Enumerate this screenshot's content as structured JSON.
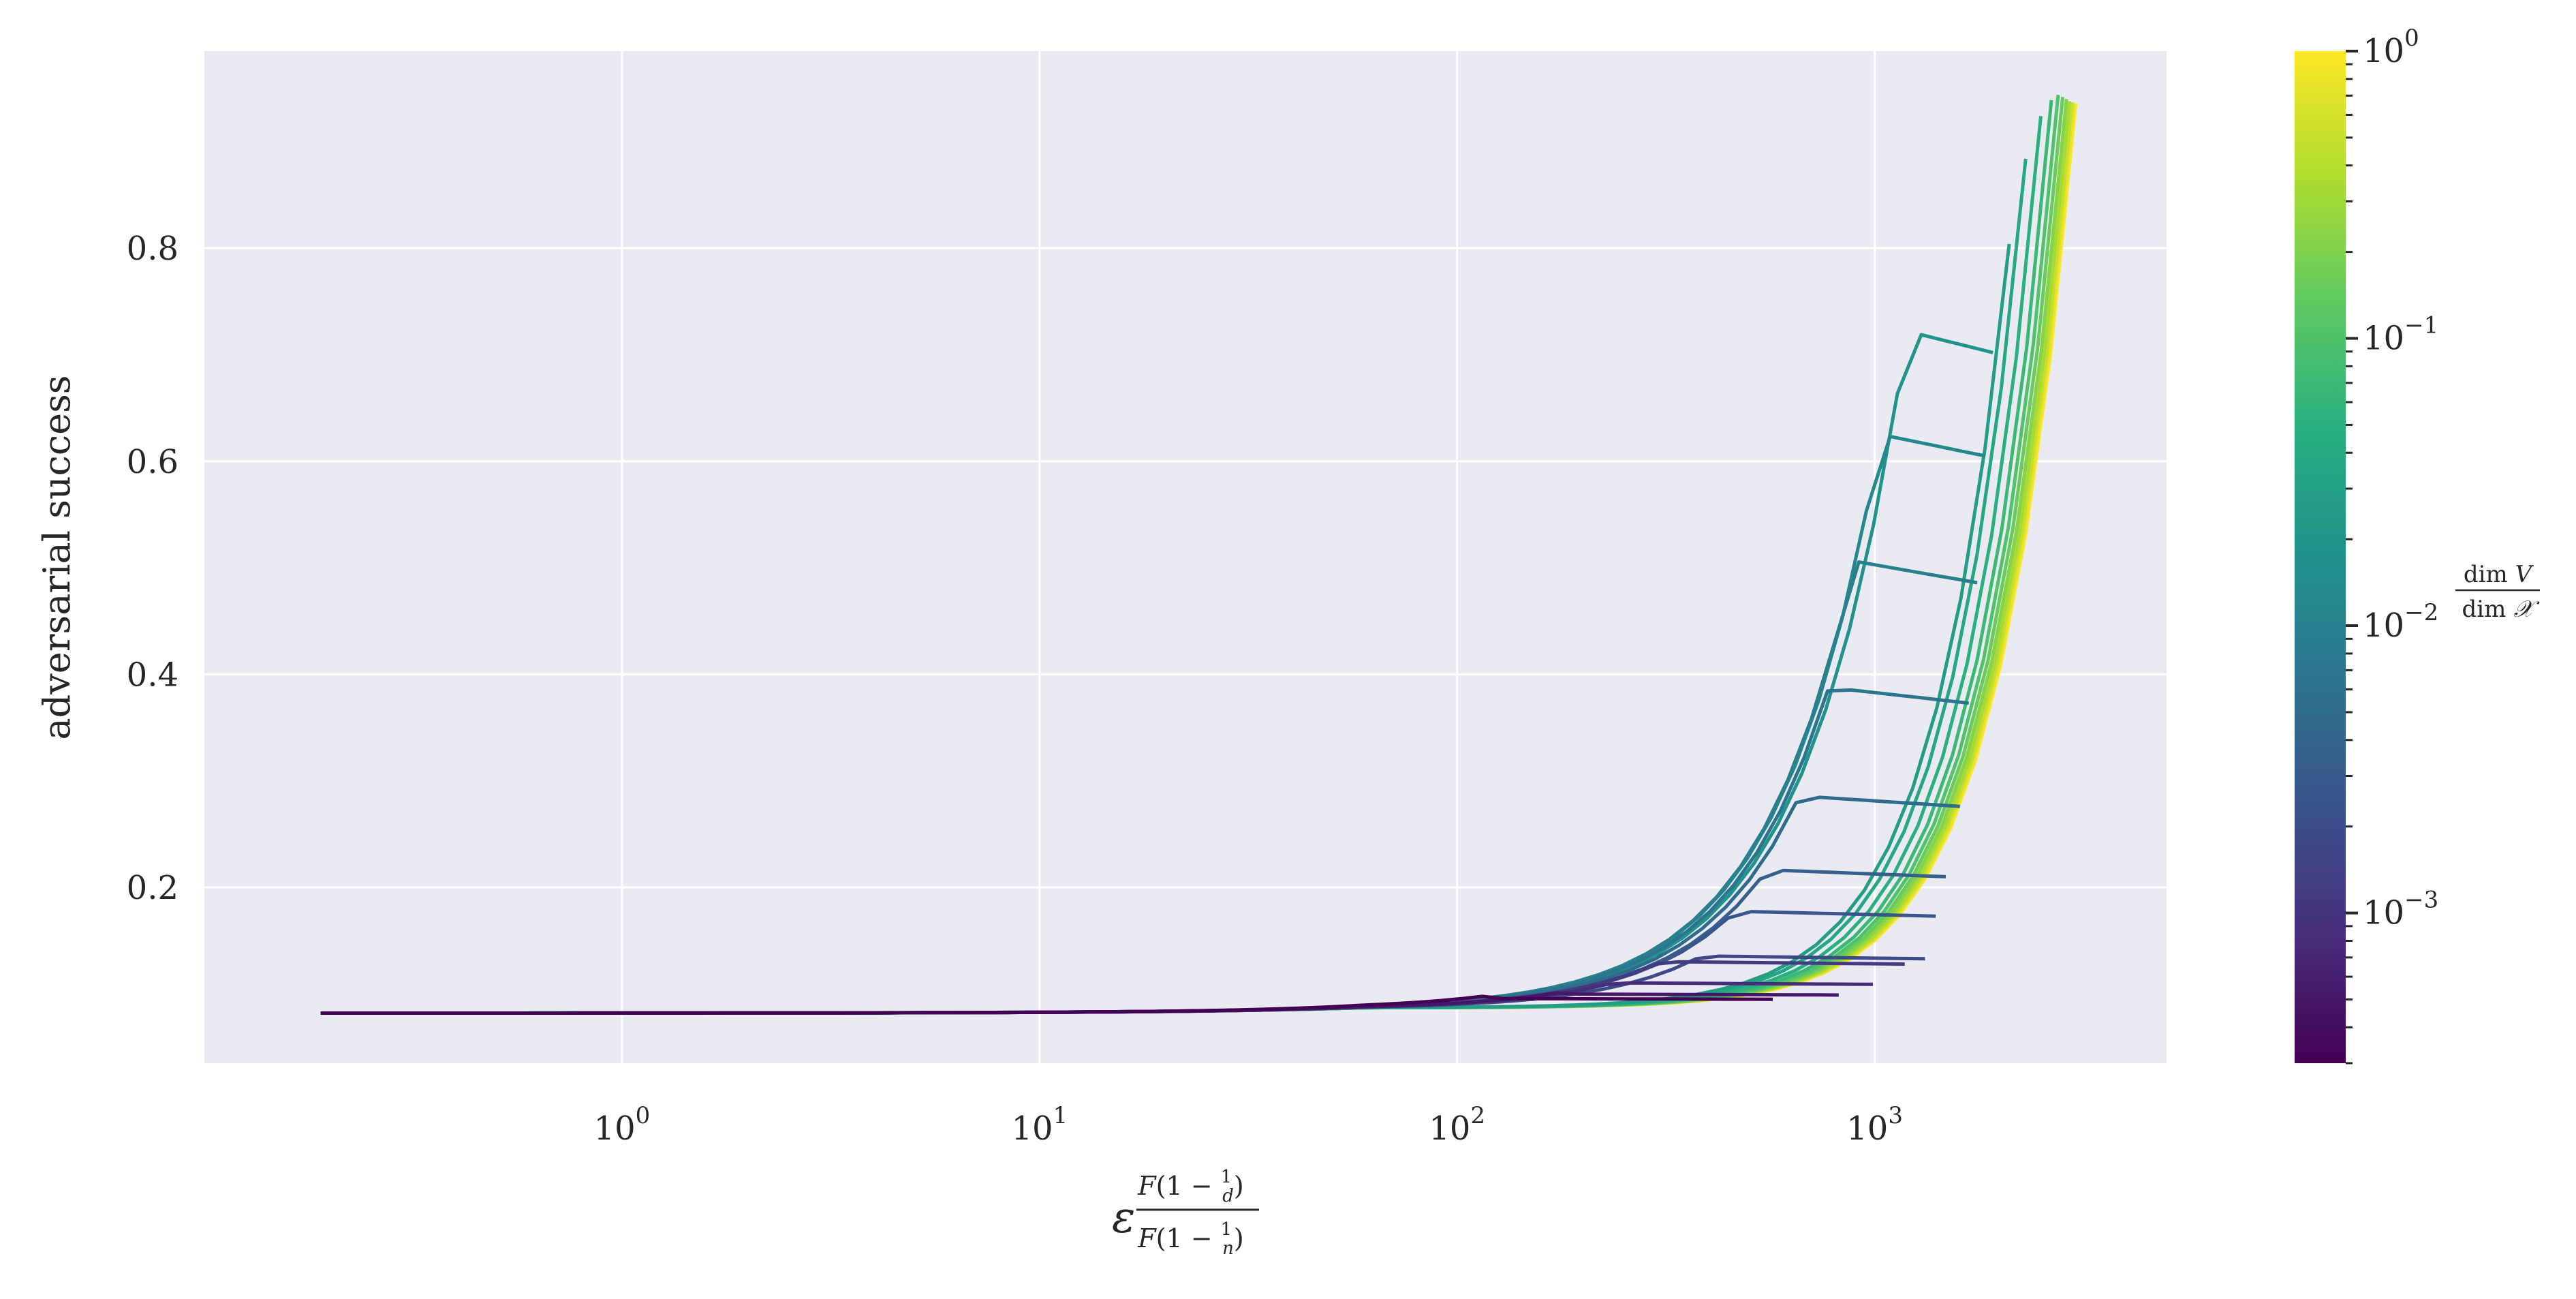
{
  "chart_data": {
    "type": "line",
    "title": "",
    "xlabel_parts": {
      "epsilon": "ε",
      "num": [
        "F",
        "(1 − ",
        "1",
        "d",
        ")"
      ],
      "den": [
        "F",
        "(1 − ",
        "1",
        "n",
        ")"
      ]
    },
    "ylabel": "adversarial success",
    "x_scale": "log",
    "xlim": [
      0.1,
      5000
    ],
    "ylim": [
      0.035,
      0.985
    ],
    "x_ticks": [
      {
        "value": 1,
        "base": "10",
        "exp": "0"
      },
      {
        "value": 10,
        "base": "10",
        "exp": "1"
      },
      {
        "value": 100,
        "base": "10",
        "exp": "2"
      },
      {
        "value": 1000,
        "base": "10",
        "exp": "3"
      }
    ],
    "y_ticks": [
      {
        "value": 0.2,
        "label": "0.2"
      },
      {
        "value": 0.4,
        "label": "0.4"
      },
      {
        "value": 0.6,
        "label": "0.6"
      },
      {
        "value": 0.8,
        "label": "0.8"
      }
    ],
    "grid": true,
    "background": "#eaeaf2",
    "colormap": "viridis",
    "colorbar": {
      "scale": "log",
      "range": [
        0.0003,
        1
      ],
      "ticks": [
        {
          "value": 0.001,
          "base": "10",
          "exp": "−3"
        },
        {
          "value": 0.01,
          "base": "10",
          "exp": "−2"
        },
        {
          "value": 0.1,
          "base": "10",
          "exp": "−1"
        },
        {
          "value": 1,
          "base": "10",
          "exp": "0"
        }
      ],
      "label_num": [
        "dim ",
        "V"
      ],
      "label_den": [
        "dim ",
        "𝒳"
      ]
    },
    "x_start": 0.19,
    "series": [
      {
        "c": 0.0003,
        "x_end": 570,
        "y_end": 0.095
      },
      {
        "c": 0.0005,
        "x_end": 820,
        "y_end": 0.099
      },
      {
        "c": 0.0008,
        "x_end": 990,
        "y_end": 0.109
      },
      {
        "c": 0.0012,
        "x_end": 1180,
        "y_end": 0.128
      },
      {
        "c": 0.0018,
        "x_end": 1320,
        "y_end": 0.133
      },
      {
        "c": 0.0025,
        "x_end": 1400,
        "y_end": 0.173
      },
      {
        "c": 0.0035,
        "x_end": 1480,
        "y_end": 0.21
      },
      {
        "c": 0.005,
        "x_end": 1600,
        "y_end": 0.276
      },
      {
        "c": 0.007,
        "x_end": 1680,
        "y_end": 0.373
      },
      {
        "c": 0.0095,
        "x_end": 1760,
        "y_end": 0.486
      },
      {
        "c": 0.013,
        "x_end": 1840,
        "y_end": 0.605
      },
      {
        "c": 0.018,
        "x_end": 1920,
        "y_end": 0.702
      },
      {
        "c": 0.026,
        "x_end": 2100,
        "y_end": 0.8
      },
      {
        "c": 0.037,
        "x_end": 2300,
        "y_end": 0.88
      },
      {
        "c": 0.05,
        "x_end": 2500,
        "y_end": 0.92
      },
      {
        "c": 0.07,
        "x_end": 2650,
        "y_end": 0.935
      },
      {
        "c": 0.1,
        "x_end": 2750,
        "y_end": 0.94
      },
      {
        "c": 0.15,
        "x_end": 2820,
        "y_end": 0.938
      },
      {
        "c": 0.22,
        "x_end": 2880,
        "y_end": 0.936
      },
      {
        "c": 0.33,
        "x_end": 2930,
        "y_end": 0.934
      },
      {
        "c": 0.5,
        "x_end": 2970,
        "y_end": 0.933
      },
      {
        "c": 0.72,
        "x_end": 3000,
        "y_end": 0.932
      },
      {
        "c": 1.0,
        "x_end": 3030,
        "y_end": 0.932
      }
    ]
  }
}
